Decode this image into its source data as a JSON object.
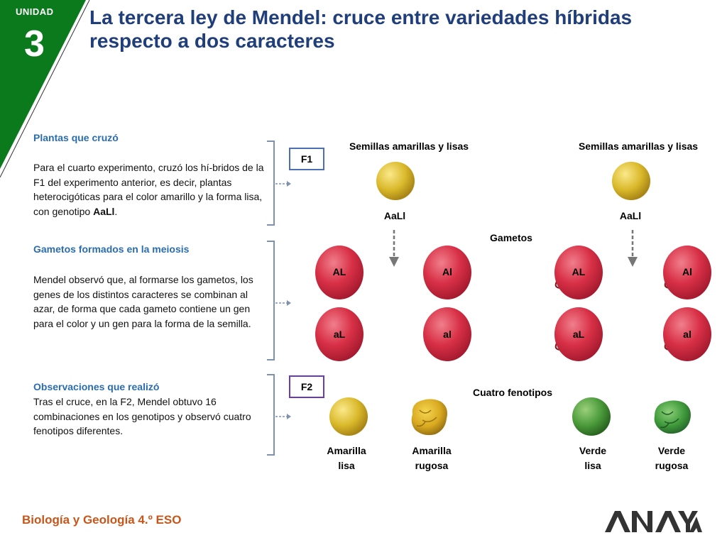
{
  "badge": {
    "label": "UNIDAD",
    "number": "3",
    "color": "#0a7a1c"
  },
  "title": "La tercera ley de Mendel: cruce entre variedades híbridas respecto a dos caracteres",
  "left": {
    "s1_title": "Plantas que cruzó",
    "s1_text_a": "Para el cuarto experimento, cruzó los hí-bridos de la F1 del experimento anterior, es decir, plantas heterocigóticas para el color amarillo y la forma lisa, con genotipo ",
    "s1_text_bold": "AaLl",
    "s1_text_end": ".",
    "s2_title": "Gametos formados en la meiosis",
    "s2_text": "Mendel observó que, al formarse los gametos, los genes de los distintos caracteres se combinan al azar, de forma que cada gameto contiene un gen para el color y un gen para la forma de la semilla.",
    "s3_title": "Observaciones que realizó",
    "s3_text": "Tras el cruce, en la F2, Mendel obtuvo 16 combinaciones en los genotipos y observó cuatro fenotipos diferentes."
  },
  "diagram": {
    "f1_label": "F1",
    "f2_label": "F2",
    "parent_left_label": "Semillas amarillas y lisas",
    "parent_right_label": "Semillas amarillas y lisas",
    "genotype_left": "AaLl",
    "genotype_right": "AaLl",
    "gametes_label": "Gametos",
    "gametes": [
      "AL",
      "Al",
      "AL",
      "Al",
      "aL",
      "al",
      "aL",
      "al"
    ],
    "phenotypes_label": "Cuatro fenotipos",
    "phen1_l1": "Amarilla",
    "phen1_l2": "lisa",
    "phen2_l1": "Amarilla",
    "phen2_l2": "rugosa",
    "phen3_l1": "Verde",
    "phen3_l2": "lisa",
    "phen4_l1": "Verde",
    "phen4_l2": "rugosa"
  },
  "footer": {
    "text": "Biología y Geología 4.º ESO",
    "logo_text": "ANAYA"
  },
  "colors": {
    "title": "#1f3e7a",
    "heading": "#2a6cb0",
    "footer": "#c8561a",
    "gamete": "#d83046",
    "yellow": "#d9b82a",
    "green": "#4a9a3a"
  }
}
